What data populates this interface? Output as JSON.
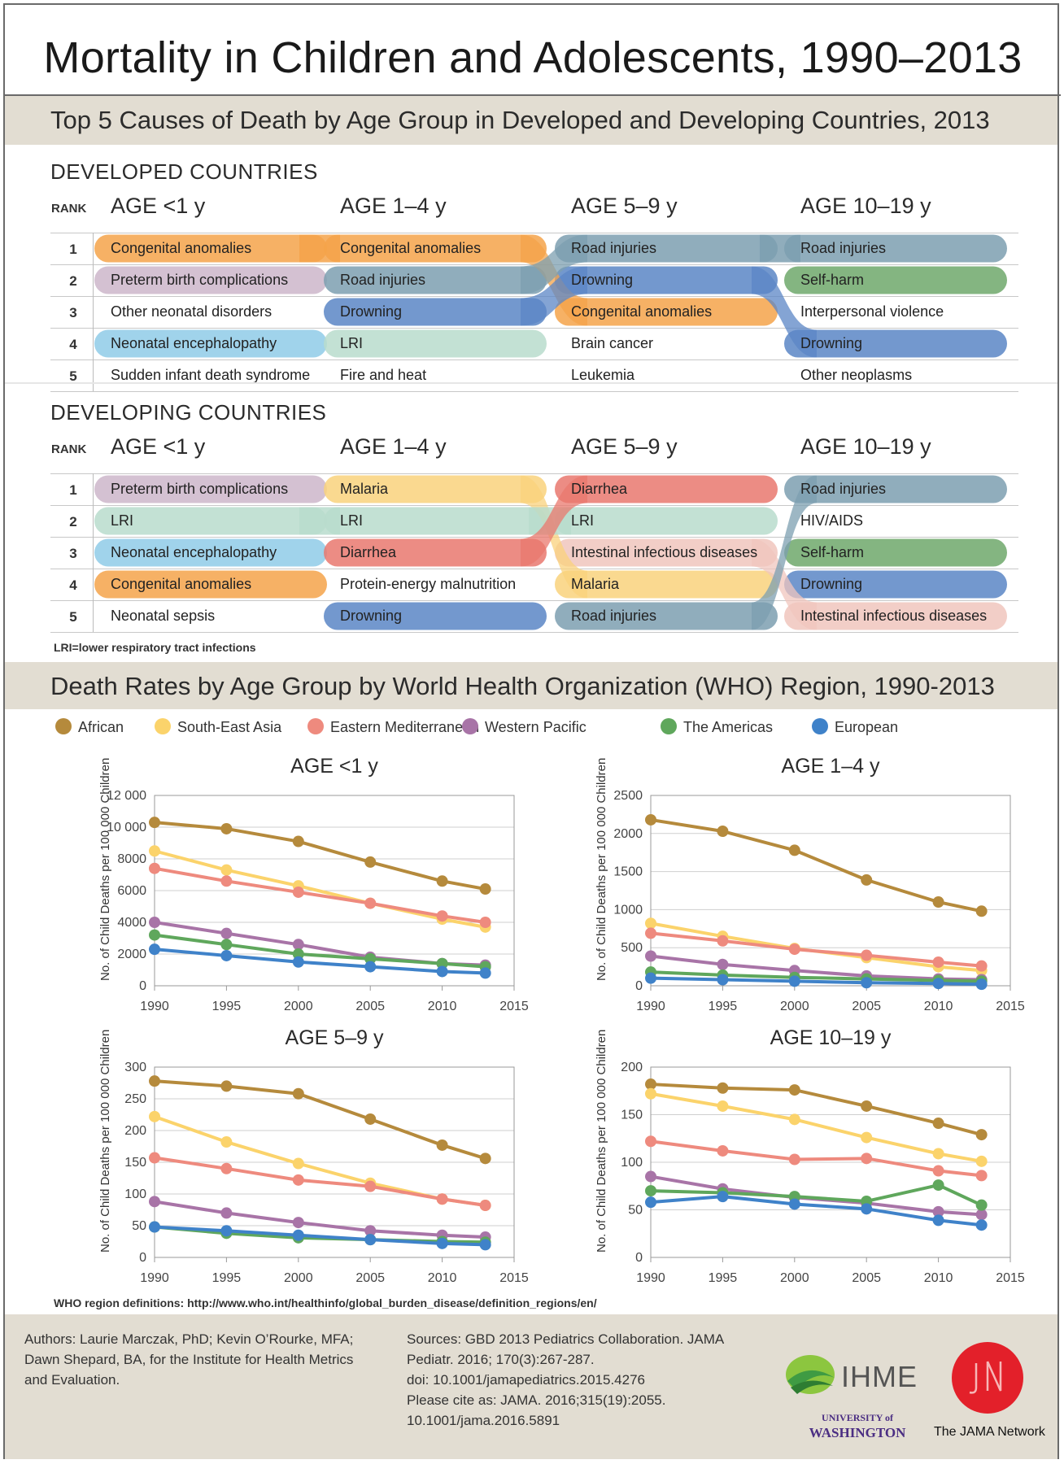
{
  "title": "Mortality in Children and Adolescents, 1990–2013",
  "section1_title": "Top 5 Causes of Death by Age Group in Developed and Developing Countries, 2013",
  "rank_label": "RANK",
  "age_groups": [
    "AGE <1 y",
    "AGE 1–4 y",
    "AGE 5–9 y",
    "AGE 10–19 y"
  ],
  "developed": {
    "heading": "DEVELOPED COUNTRIES",
    "columns": [
      [
        "Congenital anomalies",
        "Preterm birth complications",
        "Other neonatal disorders",
        "Neonatal encephalopathy",
        "Sudden infant death syndrome"
      ],
      [
        "Congenital anomalies",
        "Road injuries",
        "Drowning",
        "LRI",
        "Fire and heat"
      ],
      [
        "Road injuries",
        "Drowning",
        "Congenital anomalies",
        "Brain cancer",
        "Leukemia"
      ],
      [
        "Road injuries",
        "Self-harm",
        "Interpersonal violence",
        "Drowning",
        "Other neoplasms"
      ]
    ]
  },
  "developing": {
    "heading": "DEVELOPING COUNTRIES",
    "columns": [
      [
        "Preterm birth complications",
        "LRI",
        "Neonatal encephalopathy",
        "Congenital anomalies",
        "Neonatal sepsis"
      ],
      [
        "Malaria",
        "LRI",
        "Diarrhea",
        "Protein-energy malnutrition",
        "Drowning"
      ],
      [
        "Diarrhea",
        "LRI",
        "Intestinal infectious diseases",
        "Malaria",
        "Road injuries"
      ],
      [
        "Road injuries",
        "HIV/AIDS",
        "Self-harm",
        "Drowning",
        "Intestinal infectious diseases"
      ]
    ],
    "note": "LRI=lower respiratory tract infections"
  },
  "ranks": [
    "1",
    "2",
    "3",
    "4",
    "5"
  ],
  "cause_colors": {
    "Congenital anomalies": "#f4a34a",
    "Preterm birth complications": "#cdb6ca",
    "Neonatal encephalopathy": "#8fcbe8",
    "Road injuries": "#7c9fb0",
    "Drowning": "#5b86c6",
    "LRI": "#b9dccd",
    "Self-harm": "#6fa86b",
    "Malaria": "#f9d27c",
    "Diarrhea": "#e9786e",
    "Intestinal infectious diseases": "#f0c5bd"
  },
  "section2_title": "Death Rates by Age Group by World Health Organization (WHO) Region, 1990-2013",
  "legend": [
    {
      "name": "African",
      "color": "#b58a3c"
    },
    {
      "name": "South-East Asia",
      "color": "#fbd36b"
    },
    {
      "name": "Eastern Mediterranean",
      "color": "#ee8a7e"
    },
    {
      "name": "Western Pacific",
      "color": "#a874a7"
    },
    {
      "name": "The Americas",
      "color": "#5fa75c"
    },
    {
      "name": "European",
      "color": "#3f82c9"
    }
  ],
  "chart_data": [
    {
      "type": "line",
      "title": "AGE <1 y",
      "ylabel": "No. of Child Deaths per 100 000 Children",
      "x": [
        1990,
        1995,
        2000,
        2005,
        2010,
        2013
      ],
      "xticks": [
        1990,
        1995,
        2000,
        2005,
        2010,
        2015
      ],
      "xlim": [
        1990,
        2015
      ],
      "ylim": [
        0,
        12000
      ],
      "yticks": [
        0,
        2000,
        4000,
        6000,
        8000,
        10000,
        12000
      ],
      "ytick_labels": [
        "0",
        "2000",
        "4000",
        "6000",
        "8000",
        "10 000",
        "12 000"
      ],
      "grid": true,
      "series": [
        {
          "name": "African",
          "values": [
            10300,
            9900,
            9100,
            7800,
            6600,
            6100
          ]
        },
        {
          "name": "South-East Asia",
          "values": [
            8500,
            7300,
            6300,
            5200,
            4200,
            3700
          ]
        },
        {
          "name": "Eastern Mediterranean",
          "values": [
            7400,
            6600,
            5900,
            5200,
            4400,
            4000
          ]
        },
        {
          "name": "Western Pacific",
          "values": [
            4000,
            3300,
            2600,
            1800,
            1400,
            1300
          ]
        },
        {
          "name": "The Americas",
          "values": [
            3200,
            2600,
            2000,
            1700,
            1400,
            1200
          ]
        },
        {
          "name": "European",
          "values": [
            2300,
            1900,
            1500,
            1200,
            900,
            800
          ]
        }
      ]
    },
    {
      "type": "line",
      "title": "AGE 1–4 y",
      "ylabel": "No. of Child Deaths per 100 000 Children",
      "x": [
        1990,
        1995,
        2000,
        2005,
        2010,
        2013
      ],
      "xticks": [
        1990,
        1995,
        2000,
        2005,
        2010,
        2015
      ],
      "xlim": [
        1990,
        2015
      ],
      "ylim": [
        0,
        2500
      ],
      "yticks": [
        0,
        500,
        1000,
        1500,
        2000,
        2500
      ],
      "ytick_labels": [
        "0",
        "500",
        "1000",
        "1500",
        "2000",
        "2500"
      ],
      "grid": true,
      "series": [
        {
          "name": "African",
          "values": [
            2180,
            2030,
            1780,
            1390,
            1100,
            980
          ]
        },
        {
          "name": "South-East Asia",
          "values": [
            820,
            650,
            490,
            370,
            250,
            200
          ]
        },
        {
          "name": "Eastern Mediterranean",
          "values": [
            690,
            590,
            480,
            400,
            310,
            260
          ]
        },
        {
          "name": "Western Pacific",
          "values": [
            390,
            280,
            200,
            130,
            90,
            80
          ]
        },
        {
          "name": "The Americas",
          "values": [
            180,
            140,
            110,
            90,
            70,
            60
          ]
        },
        {
          "name": "European",
          "values": [
            100,
            80,
            60,
            40,
            30,
            20
          ]
        }
      ]
    },
    {
      "type": "line",
      "title": "AGE 5–9 y",
      "ylabel": "No. of Child Deaths per 100 000 Children",
      "x": [
        1990,
        1995,
        2000,
        2005,
        2010,
        2013
      ],
      "xticks": [
        1990,
        1995,
        2000,
        2005,
        2010,
        2015
      ],
      "xlim": [
        1990,
        2015
      ],
      "ylim": [
        0,
        300
      ],
      "yticks": [
        0,
        50,
        100,
        150,
        200,
        250,
        300
      ],
      "ytick_labels": [
        "0",
        "50",
        "100",
        "150",
        "200",
        "250",
        "300"
      ],
      "grid": true,
      "series": [
        {
          "name": "African",
          "values": [
            278,
            270,
            258,
            218,
            177,
            156
          ]
        },
        {
          "name": "South-East Asia",
          "values": [
            222,
            182,
            148,
            117,
            92,
            82
          ]
        },
        {
          "name": "Eastern Mediterranean",
          "values": [
            157,
            140,
            122,
            112,
            92,
            82
          ]
        },
        {
          "name": "Western Pacific",
          "values": [
            88,
            70,
            55,
            42,
            35,
            32
          ]
        },
        {
          "name": "The Americas",
          "values": [
            48,
            38,
            31,
            28,
            25,
            24
          ]
        },
        {
          "name": "European",
          "values": [
            48,
            42,
            35,
            28,
            22,
            20
          ]
        }
      ]
    },
    {
      "type": "line",
      "title": "AGE 10–19 y",
      "ylabel": "No. of Child Deaths per 100 000 Children",
      "x": [
        1990,
        1995,
        2000,
        2005,
        2010,
        2013
      ],
      "xticks": [
        1990,
        1995,
        2000,
        2005,
        2010,
        2015
      ],
      "xlim": [
        1990,
        2015
      ],
      "ylim": [
        0,
        200
      ],
      "yticks": [
        0,
        50,
        100,
        150,
        200
      ],
      "ytick_labels": [
        "0",
        "50",
        "100",
        "150",
        "200"
      ],
      "grid": true,
      "series": [
        {
          "name": "African",
          "values": [
            182,
            178,
            176,
            159,
            141,
            129
          ]
        },
        {
          "name": "South-East Asia",
          "values": [
            172,
            159,
            145,
            126,
            109,
            101
          ]
        },
        {
          "name": "Eastern Mediterranean",
          "values": [
            122,
            112,
            103,
            104,
            91,
            86
          ]
        },
        {
          "name": "Western Pacific",
          "values": [
            85,
            72,
            63,
            57,
            48,
            45
          ]
        },
        {
          "name": "The Americas",
          "values": [
            70,
            68,
            64,
            59,
            76,
            55
          ]
        },
        {
          "name": "European",
          "values": [
            58,
            64,
            56,
            51,
            39,
            34
          ]
        }
      ]
    }
  ],
  "who_note": "WHO region definitions: http://www.who.int/healthinfo/global_burden_disease/definition_regions/en/",
  "footer": {
    "authors": [
      "Authors: Laurie Marczak, PhD; Kevin O’Rourke, MFA;",
      "Dawn Shepard, BA, for the Institute for Health Metrics",
      "and Evaluation."
    ],
    "sources": [
      "Sources: GBD 2013 Pediatrics Collaboration. JAMA",
      "Pediatr. 2016; 170(3):267-287.",
      "doi: 10.1001/jamapediatrics.2015.4276",
      "Please cite as: JAMA. 2016;315(19):2055.",
      "10.1001/jama.2016.5891"
    ],
    "ihme": "IHME",
    "uw_line1": "UNIVERSITY of",
    "uw_line2": "WASHINGTON",
    "jama": "The JAMA Network"
  }
}
